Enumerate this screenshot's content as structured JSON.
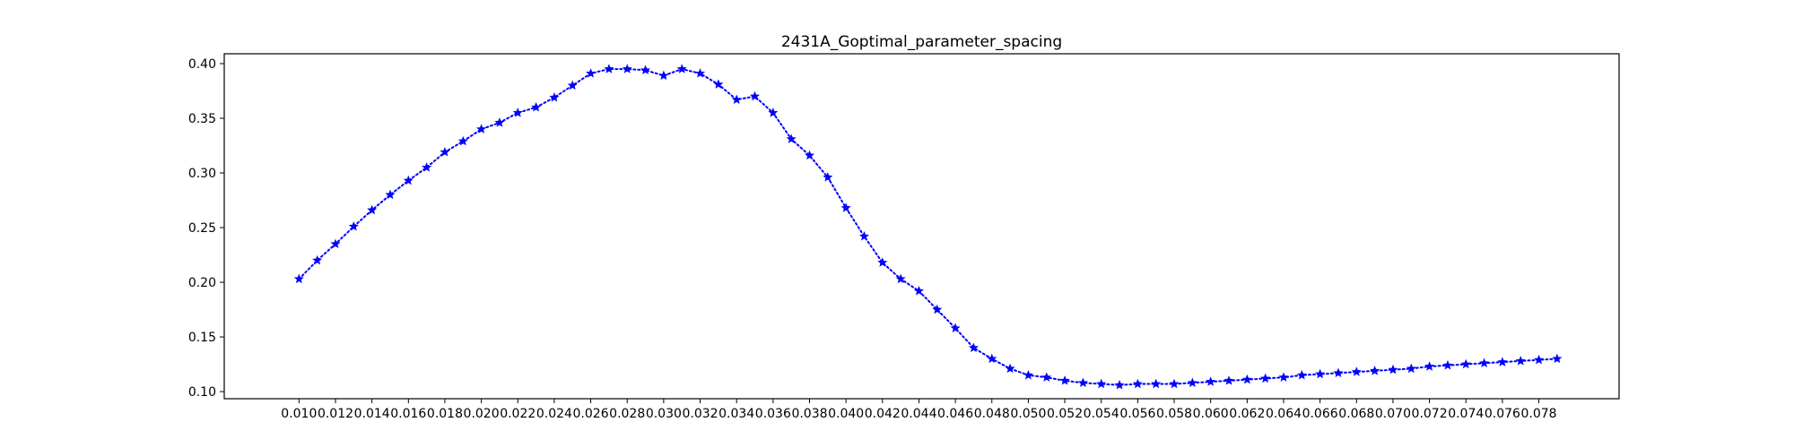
{
  "chart_data": {
    "type": "line",
    "title": "2431A_Goptimal_parameter_spacing",
    "xlabel": "",
    "ylabel": "",
    "xlim": [
      0.0059,
      0.0824
    ],
    "ylim": [
      0.0935,
      0.409
    ],
    "grid": false,
    "line_style": "dotted",
    "marker": "star",
    "color": "#0000ff",
    "x_ticks": [
      {
        "value": 0.01,
        "label": "0.010"
      },
      {
        "value": 0.012,
        "label": "0.012"
      },
      {
        "value": 0.014,
        "label": "0.014"
      },
      {
        "value": 0.016,
        "label": "0.016"
      },
      {
        "value": 0.018,
        "label": "0.018"
      },
      {
        "value": 0.02,
        "label": "0.020"
      },
      {
        "value": 0.022,
        "label": "0.022"
      },
      {
        "value": 0.024,
        "label": "0.024"
      },
      {
        "value": 0.026,
        "label": "0.026"
      },
      {
        "value": 0.028,
        "label": "0.028"
      },
      {
        "value": 0.03,
        "label": "0.030"
      },
      {
        "value": 0.032,
        "label": "0.032"
      },
      {
        "value": 0.034,
        "label": "0.034"
      },
      {
        "value": 0.036,
        "label": "0.036"
      },
      {
        "value": 0.038,
        "label": "0.038"
      },
      {
        "value": 0.04,
        "label": "0.040"
      },
      {
        "value": 0.042,
        "label": "0.042"
      },
      {
        "value": 0.044,
        "label": "0.044"
      },
      {
        "value": 0.046,
        "label": "0.046"
      },
      {
        "value": 0.048,
        "label": "0.048"
      },
      {
        "value": 0.05,
        "label": "0.050"
      },
      {
        "value": 0.052,
        "label": "0.052"
      },
      {
        "value": 0.054,
        "label": "0.054"
      },
      {
        "value": 0.056,
        "label": "0.056"
      },
      {
        "value": 0.058,
        "label": "0.058"
      },
      {
        "value": 0.06,
        "label": "0.060"
      },
      {
        "value": 0.062,
        "label": "0.062"
      },
      {
        "value": 0.064,
        "label": "0.064"
      },
      {
        "value": 0.066,
        "label": "0.066"
      },
      {
        "value": 0.068,
        "label": "0.068"
      },
      {
        "value": 0.07,
        "label": "0.070"
      },
      {
        "value": 0.072,
        "label": "0.072"
      },
      {
        "value": 0.074,
        "label": "0.074"
      },
      {
        "value": 0.076,
        "label": "0.076"
      },
      {
        "value": 0.078,
        "label": "0.078"
      }
    ],
    "y_ticks": [
      {
        "value": 0.1,
        "label": "0.10"
      },
      {
        "value": 0.15,
        "label": "0.15"
      },
      {
        "value": 0.2,
        "label": "0.20"
      },
      {
        "value": 0.25,
        "label": "0.25"
      },
      {
        "value": 0.3,
        "label": "0.30"
      },
      {
        "value": 0.35,
        "label": "0.35"
      },
      {
        "value": 0.4,
        "label": "0.40"
      }
    ],
    "x": [
      0.01,
      0.011,
      0.012,
      0.013,
      0.014,
      0.015,
      0.016,
      0.017,
      0.018,
      0.019,
      0.02,
      0.021,
      0.022,
      0.023,
      0.024,
      0.025,
      0.026,
      0.027,
      0.028,
      0.029,
      0.03,
      0.031,
      0.032,
      0.033,
      0.034,
      0.035,
      0.036,
      0.037,
      0.038,
      0.039,
      0.04,
      0.041,
      0.042,
      0.043,
      0.044,
      0.045,
      0.046,
      0.047,
      0.048,
      0.049,
      0.05,
      0.051,
      0.052,
      0.053,
      0.054,
      0.055,
      0.056,
      0.057,
      0.058,
      0.059,
      0.06,
      0.061,
      0.062,
      0.063,
      0.064,
      0.065,
      0.066,
      0.067,
      0.068,
      0.069,
      0.07,
      0.071,
      0.072,
      0.073,
      0.074,
      0.075,
      0.076,
      0.077,
      0.078,
      0.079
    ],
    "y": [
      0.203,
      0.22,
      0.235,
      0.251,
      0.266,
      0.28,
      0.293,
      0.305,
      0.319,
      0.329,
      0.34,
      0.346,
      0.355,
      0.36,
      0.369,
      0.38,
      0.391,
      0.395,
      0.395,
      0.394,
      0.389,
      0.395,
      0.391,
      0.381,
      0.367,
      0.37,
      0.355,
      0.331,
      0.316,
      0.296,
      0.268,
      0.242,
      0.218,
      0.203,
      0.192,
      0.175,
      0.158,
      0.14,
      0.13,
      0.121,
      0.115,
      0.113,
      0.11,
      0.108,
      0.107,
      0.106,
      0.107,
      0.107,
      0.107,
      0.108,
      0.109,
      0.11,
      0.111,
      0.112,
      0.113,
      0.115,
      0.116,
      0.117,
      0.118,
      0.119,
      0.12,
      0.121,
      0.123,
      0.124,
      0.125,
      0.126,
      0.127,
      0.128,
      0.129,
      0.13
    ]
  }
}
